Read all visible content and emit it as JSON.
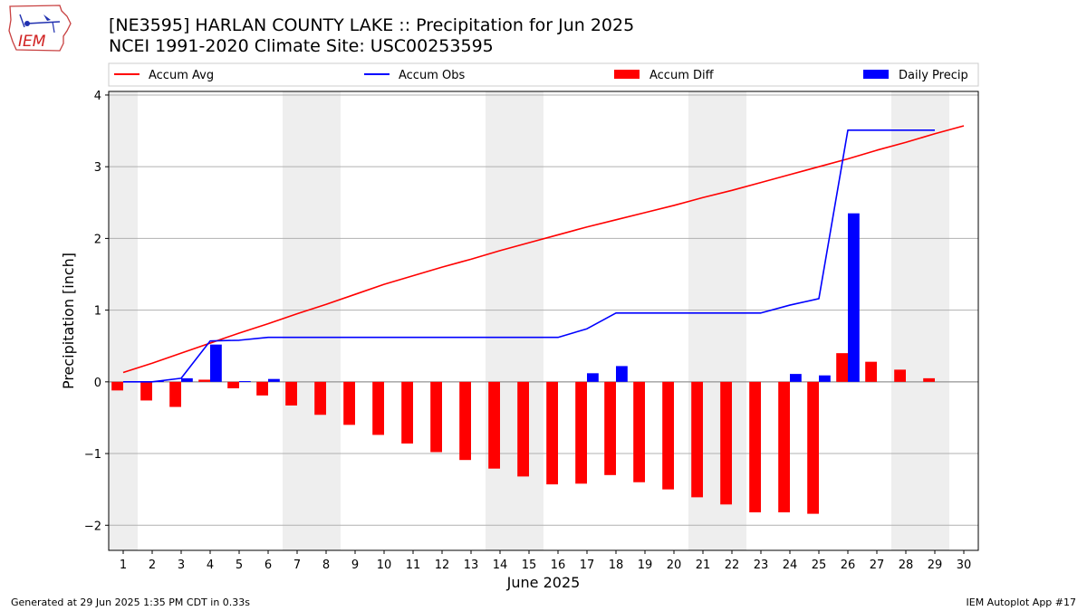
{
  "header": {
    "title_line1": "[NE3595] HARLAN COUNTY LAKE :: Precipitation for Jun 2025",
    "title_line2": "NCEI 1991-2020 Climate Site: USC00253595",
    "logo_text": "IEM"
  },
  "footer": {
    "generated": "Generated at 29 Jun 2025 1:35 PM CDT in 0.33s",
    "app": "IEM Autoplot App #17"
  },
  "chart_data": {
    "type": "bar",
    "xlabel": "June 2025",
    "ylabel": "Precipitation [inch]",
    "ylim": [
      -2.35,
      4.05
    ],
    "xlim": [
      0.5,
      30.5
    ],
    "yticks": [
      -2,
      -1,
      0,
      1,
      2,
      3,
      4
    ],
    "xticks": [
      1,
      2,
      3,
      4,
      5,
      6,
      7,
      8,
      9,
      10,
      11,
      12,
      13,
      14,
      15,
      16,
      17,
      18,
      19,
      20,
      21,
      22,
      23,
      24,
      25,
      26,
      27,
      28,
      29,
      30
    ],
    "grid": "horizontal",
    "legend_position": "top",
    "weekend_shading": [
      [
        0.5,
        1.5
      ],
      [
        6.5,
        8.5
      ],
      [
        13.5,
        15.5
      ],
      [
        20.5,
        22.5
      ],
      [
        27.5,
        29.5
      ]
    ],
    "series": [
      {
        "name": "Accum Avg",
        "kind": "line",
        "color": "#ff0000",
        "x": [
          1,
          2,
          3,
          4,
          5,
          6,
          7,
          8,
          9,
          10,
          11,
          12,
          13,
          14,
          15,
          16,
          17,
          18,
          19,
          20,
          21,
          22,
          23,
          24,
          25,
          26,
          27,
          28,
          29,
          30
        ],
        "values": [
          0.13,
          0.26,
          0.4,
          0.54,
          0.68,
          0.81,
          0.95,
          1.08,
          1.22,
          1.36,
          1.48,
          1.6,
          1.71,
          1.83,
          1.94,
          2.05,
          2.16,
          2.26,
          2.36,
          2.46,
          2.57,
          2.67,
          2.78,
          2.89,
          3.0,
          3.11,
          3.23,
          3.34,
          3.46,
          3.57
        ]
      },
      {
        "name": "Accum Obs",
        "kind": "line",
        "color": "#0000ff",
        "x": [
          1,
          2,
          3,
          4,
          5,
          6,
          7,
          8,
          9,
          10,
          11,
          12,
          13,
          14,
          15,
          16,
          17,
          18,
          19,
          20,
          21,
          22,
          23,
          24,
          25,
          26,
          27,
          28,
          29
        ],
        "values": [
          0.0,
          0.0,
          0.05,
          0.57,
          0.58,
          0.62,
          0.62,
          0.62,
          0.62,
          0.62,
          0.62,
          0.62,
          0.62,
          0.62,
          0.62,
          0.62,
          0.74,
          0.96,
          0.96,
          0.96,
          0.96,
          0.96,
          0.96,
          1.07,
          1.16,
          3.51,
          3.51,
          3.51,
          3.51
        ]
      },
      {
        "name": "Accum Diff",
        "kind": "bar",
        "color": "#ff0000",
        "offset": -0.2,
        "x": [
          1,
          2,
          3,
          4,
          5,
          6,
          7,
          8,
          9,
          10,
          11,
          12,
          13,
          14,
          15,
          16,
          17,
          18,
          19,
          20,
          21,
          22,
          23,
          24,
          25,
          26,
          27,
          28,
          29
        ],
        "values": [
          -0.12,
          -0.26,
          -0.35,
          0.03,
          -0.09,
          -0.19,
          -0.33,
          -0.46,
          -0.6,
          -0.74,
          -0.86,
          -0.98,
          -1.09,
          -1.21,
          -1.32,
          -1.43,
          -1.42,
          -1.3,
          -1.4,
          -1.5,
          -1.61,
          -1.71,
          -1.82,
          -1.82,
          -1.84,
          0.4,
          0.28,
          0.17,
          0.05
        ]
      },
      {
        "name": "Daily Precip",
        "kind": "bar",
        "color": "#0000ff",
        "offset": 0.2,
        "x": [
          2,
          3,
          4,
          5,
          6,
          17,
          18,
          24,
          25,
          26
        ],
        "values": [
          0.01,
          0.05,
          0.52,
          0.01,
          0.04,
          0.12,
          0.22,
          0.11,
          0.09,
          2.35
        ]
      }
    ]
  }
}
